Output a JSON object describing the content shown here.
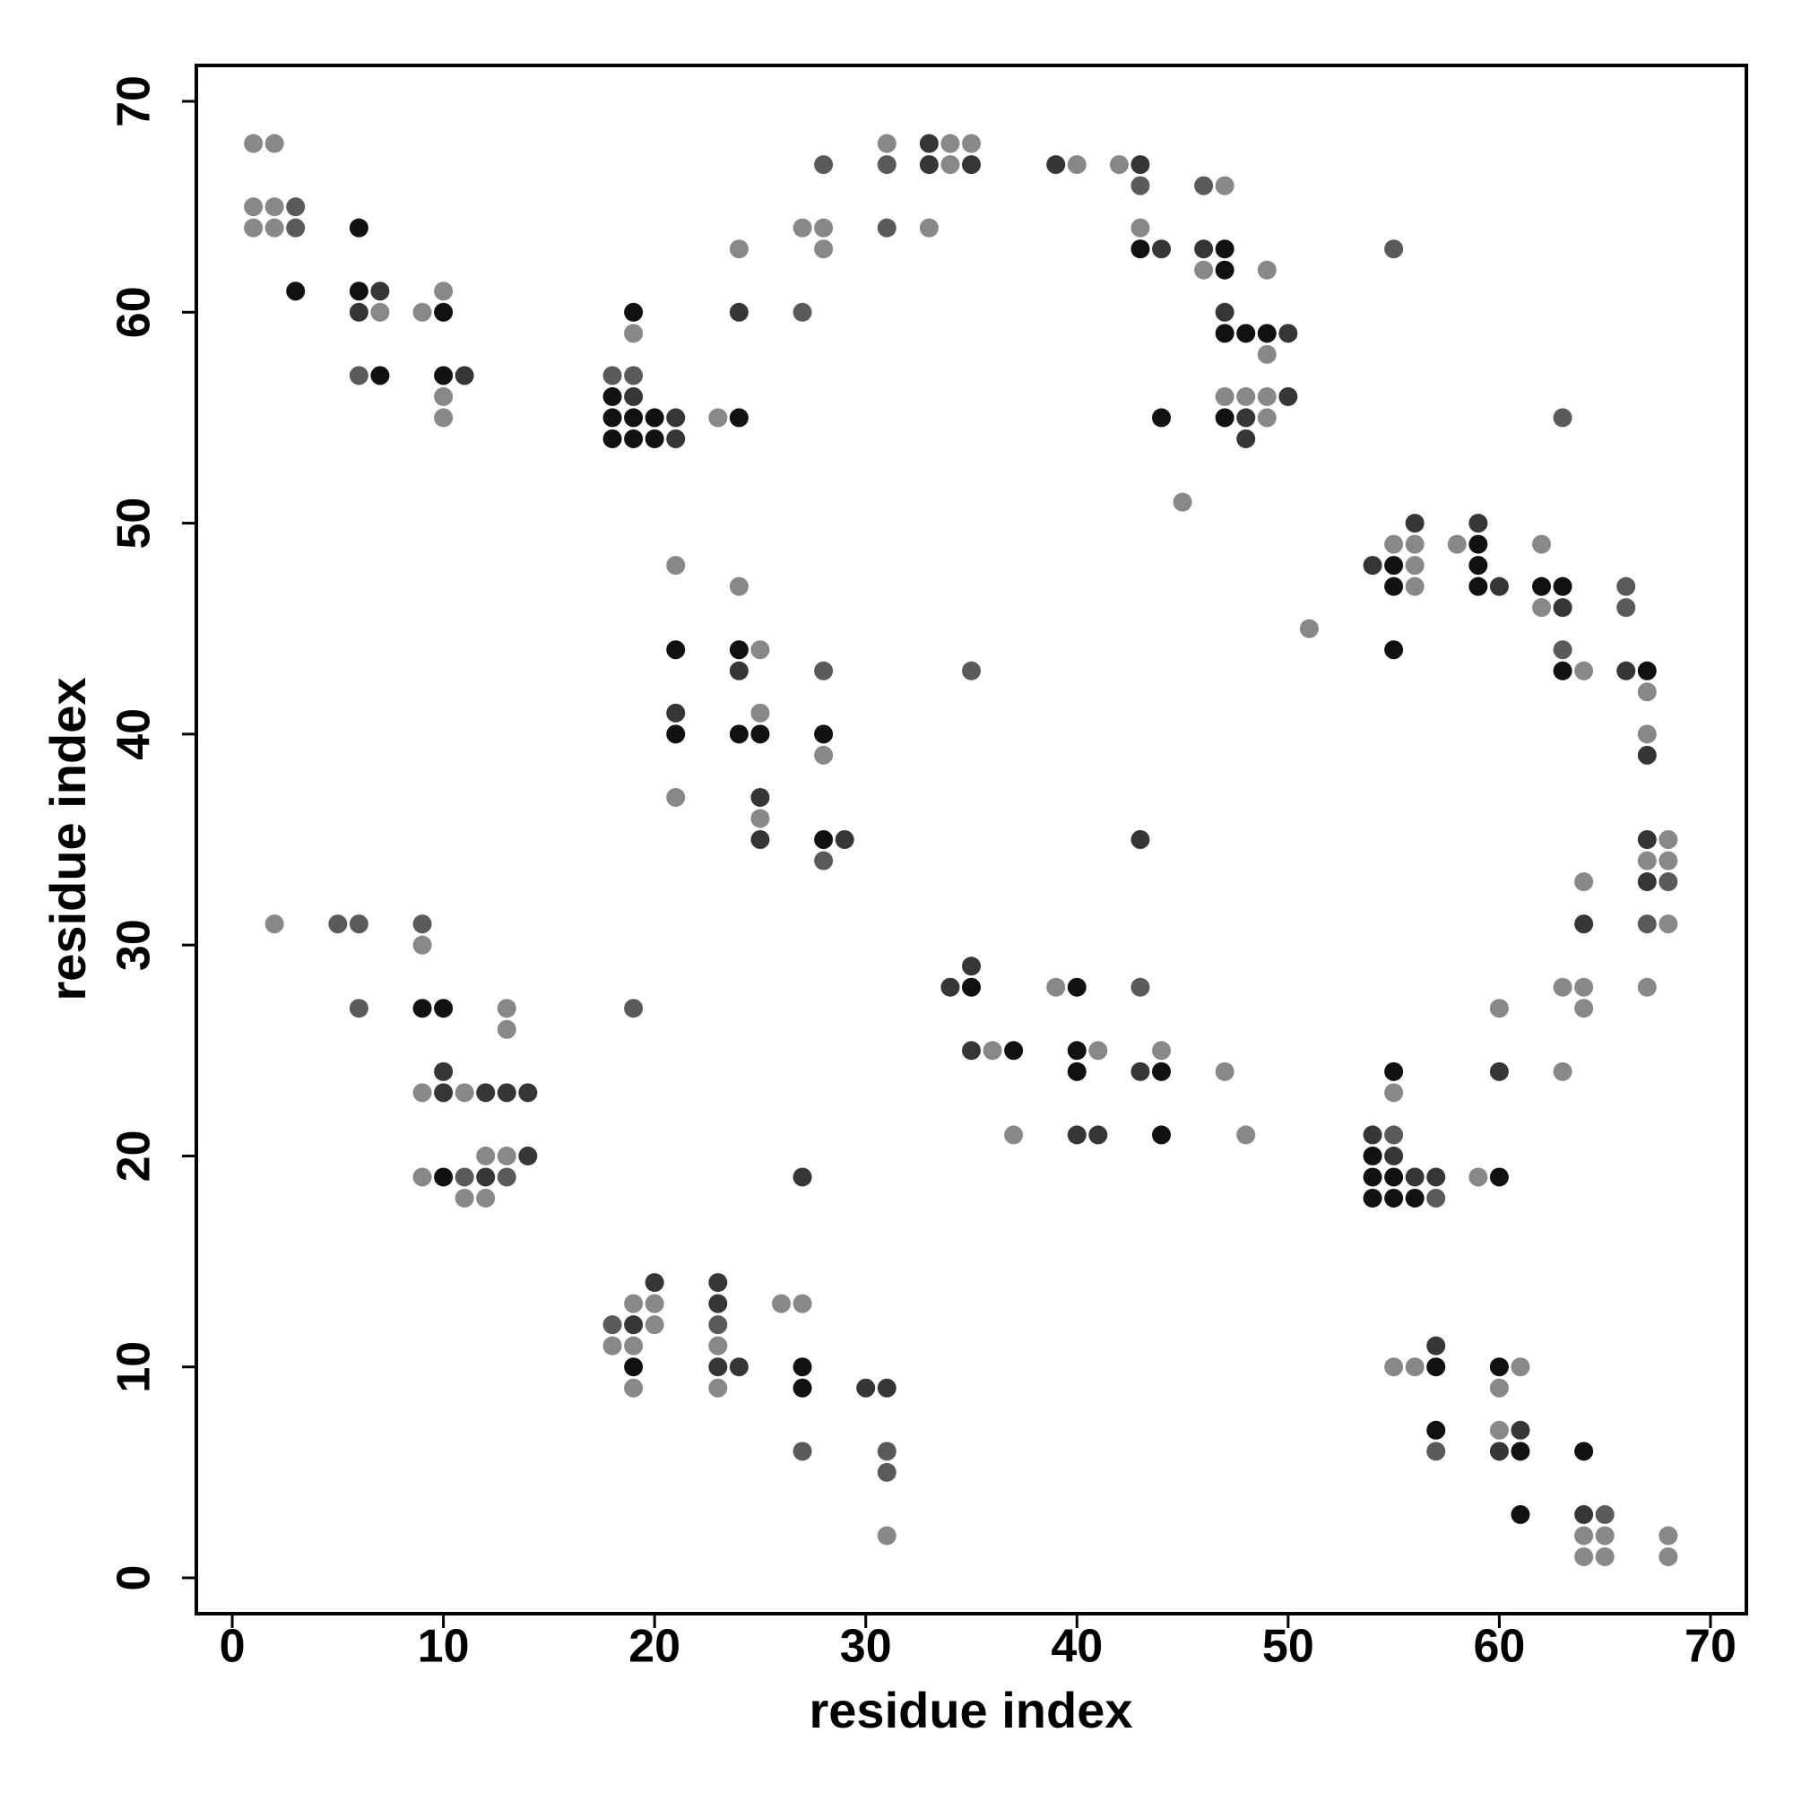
{
  "chart_data": {
    "type": "scatter",
    "x_label": "residue index",
    "y_label": "residue index",
    "xlim": [
      -1.7,
      71.7
    ],
    "ylim": [
      -1.7,
      71.7
    ],
    "xticks": [
      0,
      10,
      20,
      30,
      40,
      50,
      60,
      70
    ],
    "yticks": [
      0,
      10,
      20,
      30,
      40,
      50,
      60,
      70
    ],
    "grid": false,
    "series": [
      {
        "color": "#111111",
        "x": [
          6,
          43,
          47,
          47,
          3,
          6,
          10,
          19,
          47,
          48,
          49,
          7,
          10,
          18,
          18,
          19,
          20,
          24,
          44,
          47,
          18,
          19,
          20,
          59,
          55,
          59,
          55,
          59,
          62,
          63,
          21,
          24,
          55,
          63,
          67,
          21,
          24,
          25,
          28,
          28,
          35,
          40,
          9,
          10,
          37,
          40,
          40,
          44,
          55,
          44,
          54,
          10,
          54,
          55,
          60,
          54,
          55,
          56,
          19,
          27,
          57,
          60,
          27,
          57,
          61,
          64,
          61
        ],
        "values": [
          64,
          63,
          63,
          62,
          61,
          61,
          60,
          60,
          59,
          59,
          59,
          57,
          57,
          56,
          55,
          55,
          55,
          55,
          55,
          55,
          54,
          54,
          54,
          49,
          48,
          48,
          47,
          47,
          47,
          47,
          44,
          44,
          44,
          43,
          43,
          40,
          40,
          40,
          40,
          35,
          28,
          28,
          27,
          27,
          25,
          25,
          24,
          24,
          24,
          21,
          20,
          19,
          19,
          19,
          19,
          18,
          18,
          18,
          10,
          10,
          10,
          10,
          9,
          7,
          6,
          6,
          3
        ]
      },
      {
        "color": "#363636",
        "x": [
          33,
          33,
          35,
          39,
          43,
          44,
          46,
          7,
          6,
          24,
          47,
          50,
          11,
          19,
          50,
          21,
          48,
          21,
          48,
          56,
          59,
          54,
          60,
          63,
          24,
          66,
          21,
          67,
          25,
          25,
          29,
          43,
          67,
          67,
          64,
          35,
          34,
          35,
          10,
          43,
          60,
          10,
          12,
          13,
          14,
          40,
          41,
          54,
          14,
          55,
          12,
          27,
          56,
          57,
          20,
          23,
          23,
          19,
          57,
          23,
          24,
          30,
          31,
          61,
          60,
          64
        ],
        "values": [
          68,
          67,
          67,
          67,
          67,
          63,
          63,
          61,
          60,
          60,
          60,
          59,
          57,
          56,
          56,
          55,
          55,
          54,
          54,
          50,
          50,
          48,
          47,
          46,
          43,
          43,
          41,
          39,
          37,
          35,
          35,
          35,
          35,
          33,
          31,
          29,
          28,
          25,
          24,
          24,
          24,
          23,
          23,
          23,
          23,
          21,
          21,
          21,
          20,
          20,
          19,
          19,
          19,
          19,
          14,
          14,
          13,
          12,
          11,
          10,
          10,
          9,
          9,
          7,
          6,
          3
        ]
      },
      {
        "color": "#5a5a5a",
        "x": [
          28,
          31,
          43,
          46,
          3,
          3,
          31,
          55,
          27,
          6,
          18,
          19,
          63,
          66,
          66,
          63,
          28,
          35,
          28,
          68,
          5,
          6,
          9,
          67,
          43,
          6,
          19,
          55,
          11,
          13,
          57,
          18,
          23,
          27,
          31,
          57,
          31,
          65
        ],
        "values": [
          67,
          67,
          66,
          66,
          65,
          64,
          64,
          63,
          60,
          57,
          57,
          57,
          55,
          47,
          46,
          44,
          43,
          43,
          34,
          33,
          31,
          31,
          31,
          31,
          28,
          27,
          27,
          21,
          19,
          19,
          18,
          12,
          12,
          6,
          6,
          6,
          5,
          3
        ]
      },
      {
        "color": "#888888",
        "x": [
          1,
          2,
          31,
          34,
          35,
          34,
          40,
          42,
          47,
          1,
          2,
          1,
          2,
          27,
          28,
          33,
          43,
          24,
          28,
          46,
          49,
          10,
          7,
          9,
          19,
          49,
          10,
          47,
          48,
          49,
          10,
          23,
          49,
          45,
          55,
          56,
          58,
          62,
          21,
          56,
          24,
          56,
          62,
          51,
          25,
          64,
          67,
          25,
          67,
          28,
          21,
          25,
          68,
          67,
          68,
          64,
          2,
          68,
          9,
          39,
          63,
          64,
          67,
          13,
          60,
          64,
          13,
          36,
          41,
          44,
          47,
          63,
          9,
          11,
          55,
          37,
          48,
          12,
          13,
          9,
          59,
          11,
          12,
          19,
          20,
          26,
          27,
          20,
          18,
          19,
          23,
          55,
          56,
          61,
          19,
          23,
          60,
          60,
          31,
          64,
          65,
          68,
          64,
          65,
          68
        ],
        "values": [
          68,
          68,
          68,
          68,
          68,
          67,
          67,
          67,
          66,
          65,
          65,
          64,
          64,
          64,
          64,
          64,
          64,
          63,
          63,
          62,
          62,
          61,
          60,
          60,
          59,
          58,
          56,
          56,
          56,
          56,
          55,
          55,
          55,
          51,
          49,
          49,
          49,
          49,
          48,
          48,
          47,
          47,
          46,
          45,
          44,
          43,
          42,
          41,
          40,
          39,
          37,
          36,
          35,
          34,
          34,
          33,
          31,
          31,
          30,
          28,
          28,
          28,
          28,
          27,
          27,
          27,
          26,
          25,
          25,
          25,
          24,
          24,
          23,
          23,
          23,
          21,
          21,
          20,
          20,
          19,
          19,
          18,
          18,
          13,
          13,
          13,
          13,
          12,
          11,
          11,
          11,
          10,
          10,
          10,
          9,
          9,
          9,
          7,
          2,
          2,
          2,
          2,
          1,
          1,
          1
        ]
      }
    ]
  }
}
